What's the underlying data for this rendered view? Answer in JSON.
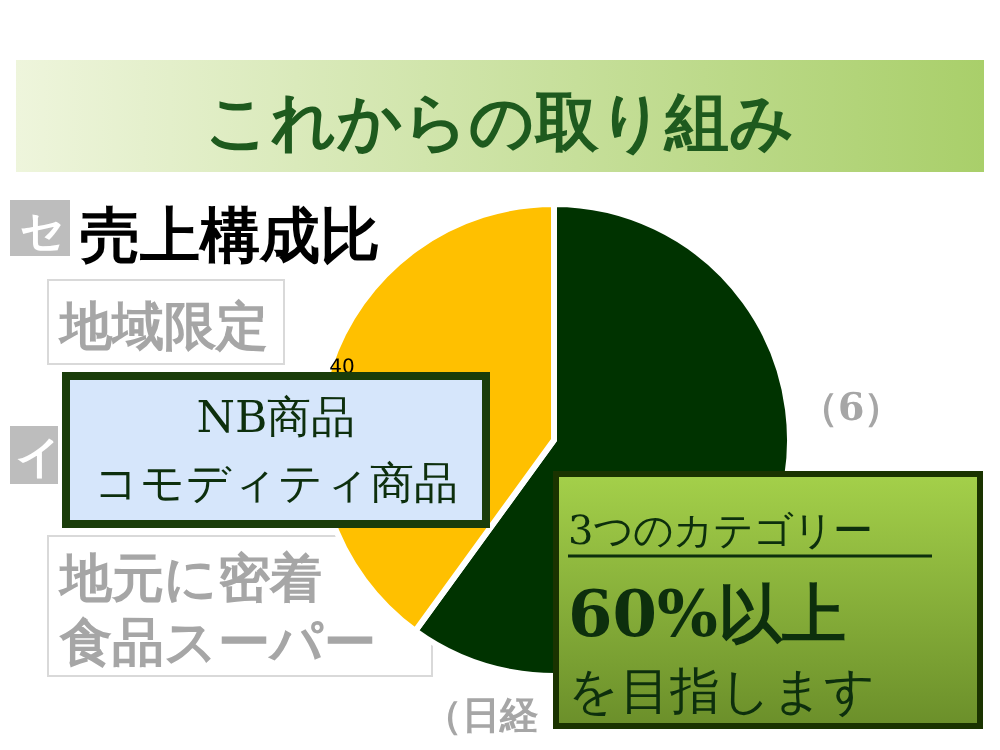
{
  "chart_data": {
    "type": "pie",
    "title": "これからの取り組み",
    "subtitle": "売上構成比",
    "categories": [
      null,
      null
    ],
    "values": [
      60,
      40
    ],
    "colors": [
      "#003300",
      "#ffc000"
    ],
    "value_labels": [
      null,
      "40"
    ],
    "annotations": [
      "NB商品",
      "コモディティ商品",
      "3つのカテゴリー",
      "60%以上",
      "を目指します",
      "セ",
      "地域限定",
      "イ",
      "地元に密着",
      "食品スーパー",
      "（6）",
      "（日経"
    ]
  }
}
